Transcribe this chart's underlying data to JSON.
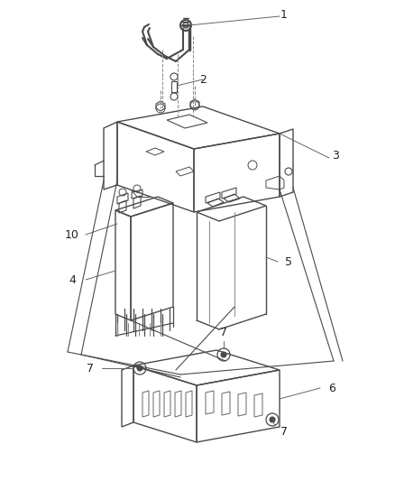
{
  "bg_color": "#ffffff",
  "lc": "#4a4a4a",
  "lc2": "#888888",
  "label_color": "#222222",
  "fig_width": 4.38,
  "fig_height": 5.33,
  "dpi": 100
}
